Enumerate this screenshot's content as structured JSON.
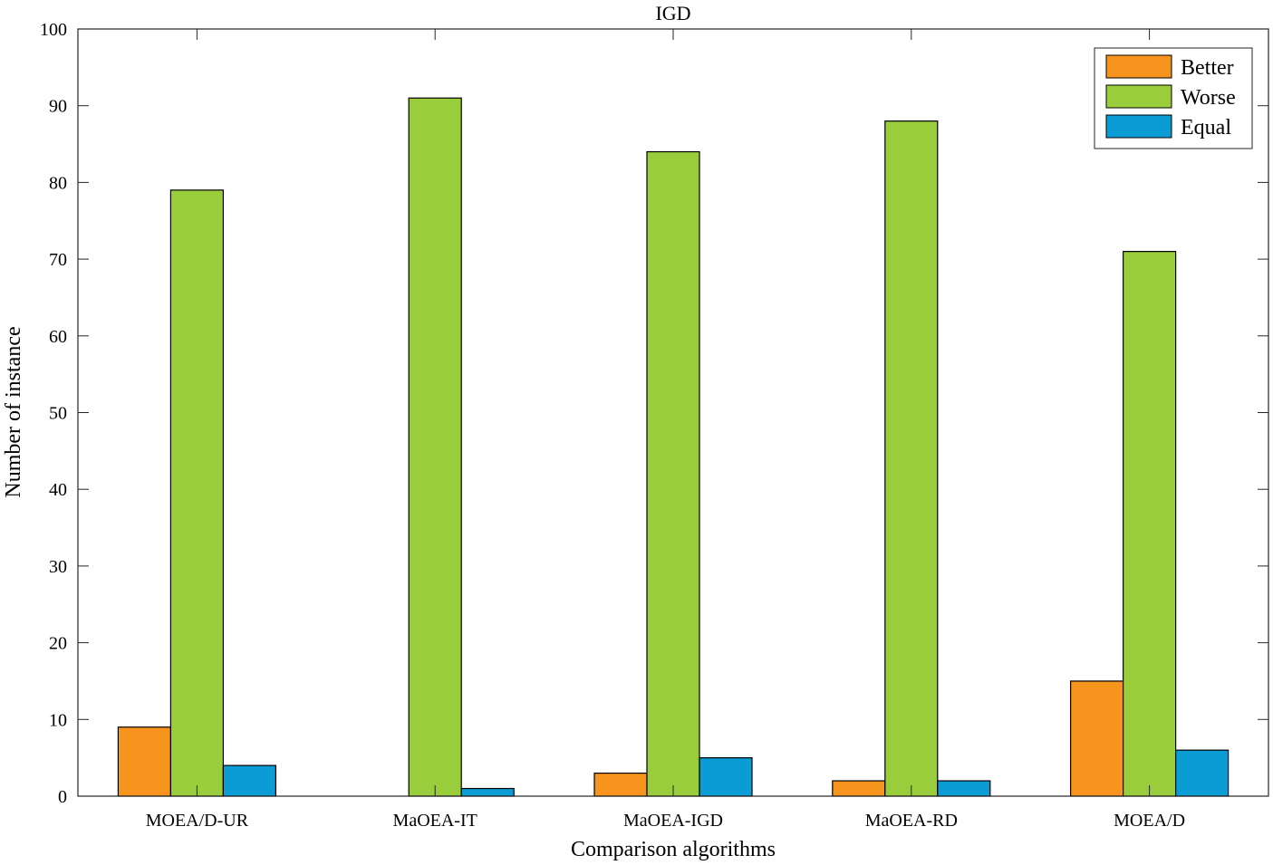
{
  "chart_data": {
    "type": "bar",
    "title": "IGD",
    "xlabel": "Comparison algorithms",
    "ylabel": "Number of instance",
    "categories": [
      "MOEA/D-UR",
      "MaOEA-IT",
      "MaOEA-IGD",
      "MaOEA-RD",
      "MOEA/D"
    ],
    "series": [
      {
        "name": "Better",
        "color": "#f7941d",
        "values": [
          9,
          0,
          3,
          2,
          15
        ]
      },
      {
        "name": "Worse",
        "color": "#9acd3c",
        "values": [
          79,
          91,
          84,
          88,
          71
        ]
      },
      {
        "name": "Equal",
        "color": "#0b9cd6",
        "values": [
          4,
          1,
          5,
          2,
          6
        ]
      }
    ],
    "ylim": [
      0,
      100
    ],
    "yticks": [
      0,
      10,
      20,
      30,
      40,
      50,
      60,
      70,
      80,
      90,
      100
    ],
    "yticks_labels": [
      "0",
      "10",
      "20",
      "30",
      "40",
      "50",
      "60",
      "70",
      "80",
      "90",
      "100"
    ],
    "grid": false,
    "legend_position": "top-right"
  }
}
